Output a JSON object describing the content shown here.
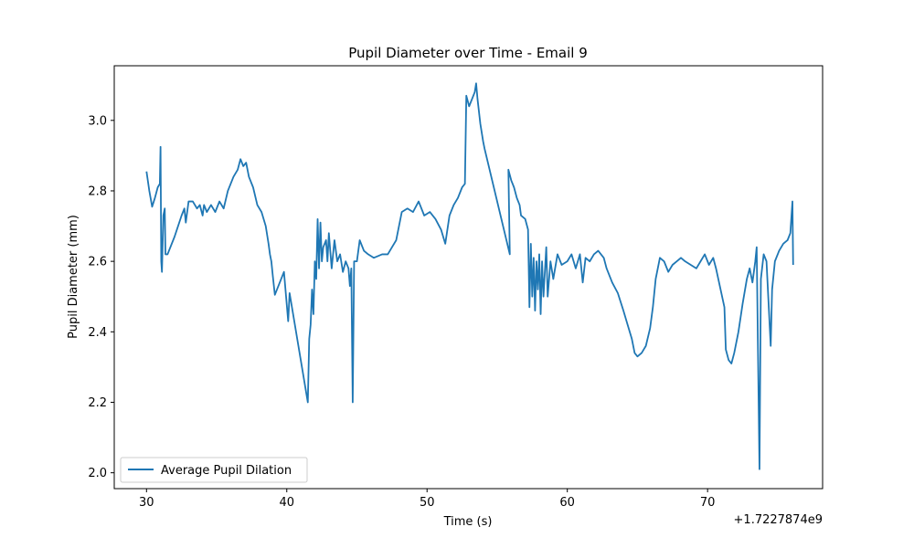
{
  "chart_data": {
    "type": "line",
    "title": "Pupil Diameter over Time - Email 9",
    "xlabel": "Time (s)",
    "ylabel": "Pupil Diameter (mm)",
    "x_offset_label": "+1.7227874e9",
    "xlim": [
      27.7,
      78.2
    ],
    "ylim": [
      1.955,
      3.155
    ],
    "x_ticks": [
      30,
      40,
      50,
      60,
      70
    ],
    "y_ticks": [
      2.0,
      2.2,
      2.4,
      2.6,
      2.8,
      3.0
    ],
    "y_tick_labels": [
      "2.0",
      "2.2",
      "2.4",
      "2.6",
      "2.8",
      "3.0"
    ],
    "legend": {
      "position": "lower-left",
      "entries": [
        "Average Pupil Dilation"
      ]
    },
    "grid": false,
    "series": [
      {
        "name": "Average Pupil Dilation",
        "color": "#1f77b4",
        "points": [
          [
            30.0,
            2.855
          ],
          [
            30.2,
            2.8
          ],
          [
            30.4,
            2.755
          ],
          [
            30.6,
            2.78
          ],
          [
            30.8,
            2.81
          ],
          [
            30.95,
            2.82
          ],
          [
            31.0,
            2.925
          ],
          [
            31.05,
            2.6
          ],
          [
            31.1,
            2.57
          ],
          [
            31.2,
            2.73
          ],
          [
            31.3,
            2.75
          ],
          [
            31.35,
            2.62
          ],
          [
            31.5,
            2.62
          ],
          [
            32.0,
            2.67
          ],
          [
            32.5,
            2.73
          ],
          [
            32.7,
            2.75
          ],
          [
            32.8,
            2.71
          ],
          [
            33.0,
            2.77
          ],
          [
            33.3,
            2.77
          ],
          [
            33.6,
            2.75
          ],
          [
            33.8,
            2.76
          ],
          [
            34.0,
            2.73
          ],
          [
            34.1,
            2.76
          ],
          [
            34.3,
            2.74
          ],
          [
            34.6,
            2.76
          ],
          [
            34.9,
            2.74
          ],
          [
            35.2,
            2.77
          ],
          [
            35.5,
            2.75
          ],
          [
            35.8,
            2.8
          ],
          [
            36.2,
            2.84
          ],
          [
            36.5,
            2.86
          ],
          [
            36.7,
            2.89
          ],
          [
            36.9,
            2.87
          ],
          [
            37.1,
            2.88
          ],
          [
            37.3,
            2.84
          ],
          [
            37.6,
            2.81
          ],
          [
            37.9,
            2.76
          ],
          [
            38.2,
            2.74
          ],
          [
            38.5,
            2.7
          ],
          [
            38.7,
            2.65
          ],
          [
            38.8,
            2.62
          ],
          [
            38.9,
            2.6
          ],
          [
            39.0,
            2.56
          ],
          [
            39.15,
            2.505
          ],
          [
            39.5,
            2.54
          ],
          [
            39.8,
            2.57
          ],
          [
            40.1,
            2.43
          ],
          [
            40.2,
            2.51
          ],
          [
            41.5,
            2.2
          ],
          [
            41.6,
            2.38
          ],
          [
            41.7,
            2.42
          ],
          [
            41.8,
            2.52
          ],
          [
            41.9,
            2.45
          ],
          [
            42.0,
            2.6
          ],
          [
            42.1,
            2.55
          ],
          [
            42.2,
            2.72
          ],
          [
            42.3,
            2.58
          ],
          [
            42.4,
            2.71
          ],
          [
            42.5,
            2.6
          ],
          [
            42.6,
            2.64
          ],
          [
            42.8,
            2.66
          ],
          [
            42.9,
            2.6
          ],
          [
            43.0,
            2.68
          ],
          [
            43.2,
            2.58
          ],
          [
            43.4,
            2.66
          ],
          [
            43.6,
            2.6
          ],
          [
            43.8,
            2.62
          ],
          [
            44.0,
            2.57
          ],
          [
            44.2,
            2.6
          ],
          [
            44.4,
            2.58
          ],
          [
            44.5,
            2.53
          ],
          [
            44.6,
            2.58
          ],
          [
            44.7,
            2.2
          ],
          [
            44.8,
            2.6
          ],
          [
            45.0,
            2.6
          ],
          [
            45.2,
            2.66
          ],
          [
            45.5,
            2.63
          ],
          [
            45.8,
            2.62
          ],
          [
            46.2,
            2.61
          ],
          [
            46.8,
            2.62
          ],
          [
            47.2,
            2.62
          ],
          [
            47.5,
            2.64
          ],
          [
            47.8,
            2.66
          ],
          [
            48.2,
            2.74
          ],
          [
            48.6,
            2.75
          ],
          [
            49.0,
            2.74
          ],
          [
            49.4,
            2.77
          ],
          [
            49.8,
            2.73
          ],
          [
            50.2,
            2.74
          ],
          [
            50.6,
            2.72
          ],
          [
            51.0,
            2.69
          ],
          [
            51.3,
            2.65
          ],
          [
            51.6,
            2.73
          ],
          [
            51.9,
            2.76
          ],
          [
            52.2,
            2.78
          ],
          [
            52.5,
            2.81
          ],
          [
            52.7,
            2.82
          ],
          [
            52.8,
            3.07
          ],
          [
            53.0,
            3.04
          ],
          [
            53.2,
            3.06
          ],
          [
            53.4,
            3.08
          ],
          [
            53.5,
            3.105
          ],
          [
            53.6,
            3.06
          ],
          [
            53.8,
            2.99
          ],
          [
            54.0,
            2.94
          ],
          [
            54.1,
            2.92
          ],
          [
            55.9,
            2.62
          ],
          [
            55.8,
            2.86
          ],
          [
            56.0,
            2.83
          ],
          [
            56.2,
            2.81
          ],
          [
            56.4,
            2.78
          ],
          [
            56.6,
            2.76
          ],
          [
            56.7,
            2.73
          ],
          [
            57.0,
            2.72
          ],
          [
            57.2,
            2.69
          ],
          [
            57.3,
            2.47
          ],
          [
            57.4,
            2.65
          ],
          [
            57.5,
            2.5
          ],
          [
            57.6,
            2.61
          ],
          [
            57.7,
            2.46
          ],
          [
            57.8,
            2.6
          ],
          [
            57.9,
            2.52
          ],
          [
            58.0,
            2.62
          ],
          [
            58.1,
            2.45
          ],
          [
            58.2,
            2.6
          ],
          [
            58.3,
            2.5
          ],
          [
            58.5,
            2.64
          ],
          [
            58.6,
            2.5
          ],
          [
            58.8,
            2.6
          ],
          [
            59.0,
            2.55
          ],
          [
            59.3,
            2.62
          ],
          [
            59.6,
            2.59
          ],
          [
            60.0,
            2.6
          ],
          [
            60.3,
            2.62
          ],
          [
            60.6,
            2.58
          ],
          [
            60.9,
            2.62
          ],
          [
            61.1,
            2.54
          ],
          [
            61.3,
            2.61
          ],
          [
            61.6,
            2.6
          ],
          [
            61.9,
            2.62
          ],
          [
            62.2,
            2.63
          ],
          [
            62.6,
            2.61
          ],
          [
            62.8,
            2.58
          ],
          [
            63.2,
            2.54
          ],
          [
            63.6,
            2.51
          ],
          [
            64.0,
            2.46
          ],
          [
            64.3,
            2.42
          ],
          [
            64.6,
            2.38
          ],
          [
            64.8,
            2.34
          ],
          [
            65.0,
            2.33
          ],
          [
            65.3,
            2.34
          ],
          [
            65.6,
            2.36
          ],
          [
            65.9,
            2.41
          ],
          [
            66.1,
            2.47
          ],
          [
            66.3,
            2.55
          ],
          [
            66.6,
            2.61
          ],
          [
            66.9,
            2.6
          ],
          [
            67.2,
            2.57
          ],
          [
            67.5,
            2.59
          ],
          [
            67.8,
            2.6
          ],
          [
            68.1,
            2.61
          ],
          [
            68.4,
            2.6
          ],
          [
            68.8,
            2.59
          ],
          [
            69.2,
            2.58
          ],
          [
            69.5,
            2.6
          ],
          [
            69.8,
            2.62
          ],
          [
            70.1,
            2.59
          ],
          [
            70.4,
            2.61
          ],
          [
            70.6,
            2.58
          ],
          [
            71.2,
            2.47
          ],
          [
            71.3,
            2.35
          ],
          [
            71.5,
            2.32
          ],
          [
            71.7,
            2.31
          ],
          [
            71.9,
            2.34
          ],
          [
            72.2,
            2.4
          ],
          [
            72.5,
            2.48
          ],
          [
            72.8,
            2.55
          ],
          [
            73.0,
            2.58
          ],
          [
            73.2,
            2.54
          ],
          [
            73.4,
            2.6
          ],
          [
            73.5,
            2.64
          ],
          [
            73.7,
            2.01
          ],
          [
            73.8,
            2.55
          ],
          [
            74.0,
            2.62
          ],
          [
            74.2,
            2.6
          ],
          [
            74.5,
            2.36
          ],
          [
            74.6,
            2.52
          ],
          [
            74.8,
            2.6
          ],
          [
            75.1,
            2.63
          ],
          [
            75.4,
            2.65
          ],
          [
            75.7,
            2.66
          ],
          [
            75.9,
            2.68
          ],
          [
            76.05,
            2.77
          ],
          [
            76.1,
            2.59
          ]
        ]
      }
    ]
  }
}
